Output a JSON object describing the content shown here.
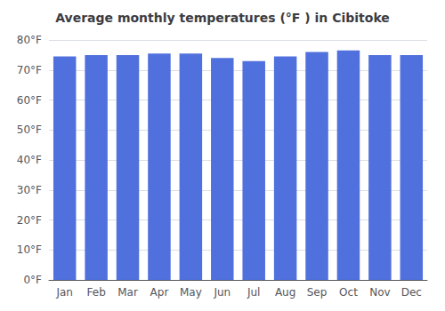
{
  "chart_data": {
    "type": "bar",
    "title": "Average monthly temperatures (°F ) in Cibitoke",
    "categories": [
      "Jan",
      "Feb",
      "Mar",
      "Apr",
      "May",
      "Jun",
      "Jul",
      "Aug",
      "Sep",
      "Oct",
      "Nov",
      "Dec"
    ],
    "values": [
      74.5,
      75.0,
      75.0,
      75.5,
      75.5,
      74.0,
      73.0,
      74.5,
      76.0,
      76.5,
      75.0,
      75.0
    ],
    "ylim": [
      0,
      80
    ],
    "yticks": [
      {
        "value": 0,
        "label": "0°F"
      },
      {
        "value": 10,
        "label": "10°F"
      },
      {
        "value": 20,
        "label": "20°F"
      },
      {
        "value": 30,
        "label": "30°F"
      },
      {
        "value": 40,
        "label": "40°F"
      },
      {
        "value": 50,
        "label": "50°F"
      },
      {
        "value": 60,
        "label": "60°F"
      },
      {
        "value": 70,
        "label": "70°F"
      },
      {
        "value": 80,
        "label": "80°F"
      }
    ],
    "grid": true
  }
}
